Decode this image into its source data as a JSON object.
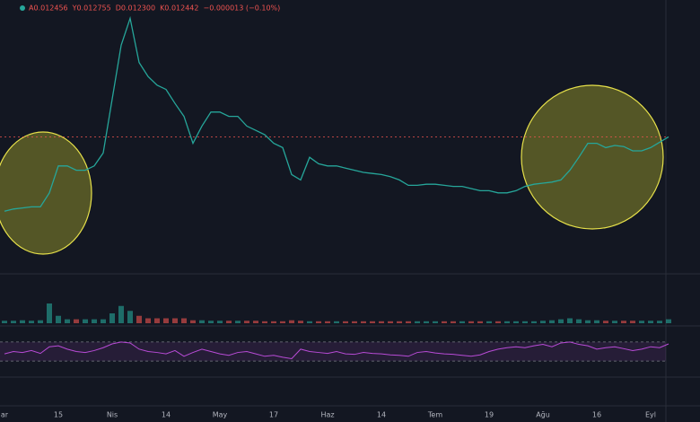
{
  "chart_data": {
    "type": "line",
    "header": [
      "A0.012456",
      "Y0.012755",
      "D0.012300",
      "K0.012442",
      "−0.000013 (−0.10%)"
    ],
    "categories": [
      "ar",
      null,
      null,
      null,
      null,
      null,
      "15",
      null,
      null,
      null,
      null,
      null,
      "Nis",
      null,
      null,
      null,
      null,
      null,
      "14",
      null,
      null,
      null,
      null,
      null,
      "May",
      null,
      null,
      null,
      null,
      null,
      "17",
      null,
      null,
      null,
      null,
      null,
      "Haz",
      null,
      null,
      null,
      null,
      null,
      "14",
      null,
      null,
      null,
      null,
      null,
      "Tem",
      null,
      null,
      null,
      null,
      null,
      "19",
      null,
      null,
      null,
      null,
      null,
      "Ağu",
      null,
      null,
      null,
      null,
      null,
      "16",
      null,
      null,
      null,
      null,
      null,
      "Eyl",
      null,
      null
    ],
    "price": {
      "color": "#26a69a",
      "ylim": [
        0,
        0.025
      ],
      "values": [
        0.0054,
        0.0056,
        0.0057,
        0.0058,
        0.0058,
        0.0071,
        0.0096,
        0.0096,
        0.0092,
        0.0092,
        0.0096,
        0.0108,
        0.0158,
        0.0208,
        0.0233,
        0.0192,
        0.0179,
        0.0171,
        0.0167,
        0.0154,
        0.0142,
        0.0117,
        0.0133,
        0.0146,
        0.0146,
        0.0142,
        0.0142,
        0.0133,
        0.0129,
        0.0125,
        0.0117,
        0.0113,
        0.0088,
        0.0083,
        0.0104,
        0.0098,
        0.0096,
        0.0096,
        0.0094,
        0.0092,
        0.009,
        0.0089,
        0.0088,
        0.0086,
        0.0083,
        0.0078,
        0.0078,
        0.0079,
        0.0079,
        0.0078,
        0.0077,
        0.0077,
        0.0075,
        0.0073,
        0.0073,
        0.0071,
        0.0071,
        0.0073,
        0.0077,
        0.0079,
        0.008,
        0.0081,
        0.0083,
        0.0092,
        0.0104,
        0.0117,
        0.0117,
        0.0113,
        0.0115,
        0.0114,
        0.011,
        0.011,
        0.0113,
        0.0118,
        0.0123
      ]
    },
    "volume": {
      "up_color": "#26a69a",
      "down_color": "#ef5350",
      "ylim": [
        0,
        100
      ],
      "values": [
        5,
        5,
        6,
        5,
        6,
        40,
        15,
        8,
        8,
        8,
        8,
        8,
        20,
        35,
        25,
        15,
        10,
        10,
        10,
        10,
        10,
        6,
        6,
        5,
        5,
        5,
        5,
        5,
        5,
        4,
        4,
        4,
        6,
        5,
        4,
        4,
        4,
        4,
        4,
        4,
        4,
        4,
        4,
        4,
        4,
        4,
        4,
        4,
        4,
        4,
        4,
        4,
        4,
        4,
        4,
        4,
        4,
        4,
        4,
        4,
        5,
        6,
        8,
        10,
        8,
        6,
        6,
        5,
        5,
        5,
        5,
        5,
        5,
        5,
        8
      ]
    },
    "rsi": {
      "color": "#b84bd6",
      "ylim": [
        0,
        100
      ],
      "bands": [
        70,
        30
      ],
      "values": [
        45,
        50,
        48,
        52,
        46,
        60,
        62,
        55,
        50,
        48,
        52,
        58,
        66,
        70,
        68,
        55,
        50,
        48,
        45,
        52,
        40,
        48,
        55,
        50,
        45,
        42,
        48,
        50,
        45,
        40,
        42,
        38,
        35,
        55,
        50,
        48,
        46,
        50,
        45,
        44,
        48,
        46,
        45,
        43,
        42,
        40,
        48,
        50,
        47,
        45,
        44,
        42,
        40,
        43,
        50,
        55,
        58,
        60,
        58,
        62,
        65,
        60,
        68,
        70,
        65,
        62,
        55,
        58,
        60,
        56,
        52,
        55,
        60,
        58,
        66
      ]
    }
  }
}
